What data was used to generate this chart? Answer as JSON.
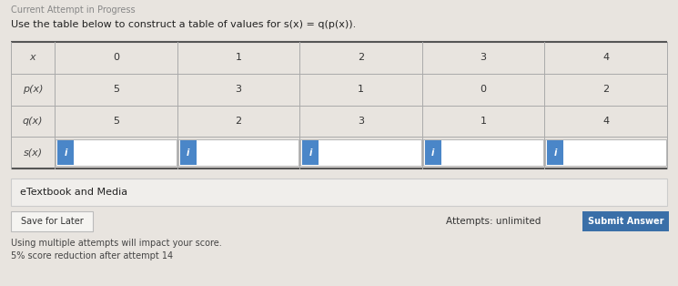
{
  "title": "Use the table below to construct a table of values for s(x) = q(p(x)).",
  "header_text": "Current Attempt in Progress",
  "bg_color": "#e8e4df",
  "table_bg": "#e8e4df",
  "row_labels": [
    "x",
    "p(x)",
    "q(x)",
    "s(x)"
  ],
  "col_values": [
    "0",
    "1",
    "2",
    "3",
    "4"
  ],
  "p_values": [
    "5",
    "3",
    "1",
    "0",
    "2"
  ],
  "q_values": [
    "5",
    "2",
    "3",
    "1",
    "4"
  ],
  "input_bg": "#ffffff",
  "input_btn_bg": "#4a86c8",
  "input_btn_border": "#2e6da4",
  "etextbook_bg": "#f0eeeb",
  "etextbook_border": "#cccccc",
  "etextbook_text": "eTextbook and Media",
  "save_btn_text": "Save for Later",
  "save_btn_bg": "#f5f4f1",
  "save_btn_border": "#bbbbbb",
  "submit_btn_text": "Submit Answer",
  "submit_btn_bg": "#3a6fa8",
  "attempts_text": "Attempts: unlimited",
  "note1": "Using multiple attempts will impact your score.",
  "note2": "5% score reduction after attempt 14",
  "table_border_top": "#555555",
  "table_border_inner": "#aaaaaa",
  "row_label_color": "#555555"
}
